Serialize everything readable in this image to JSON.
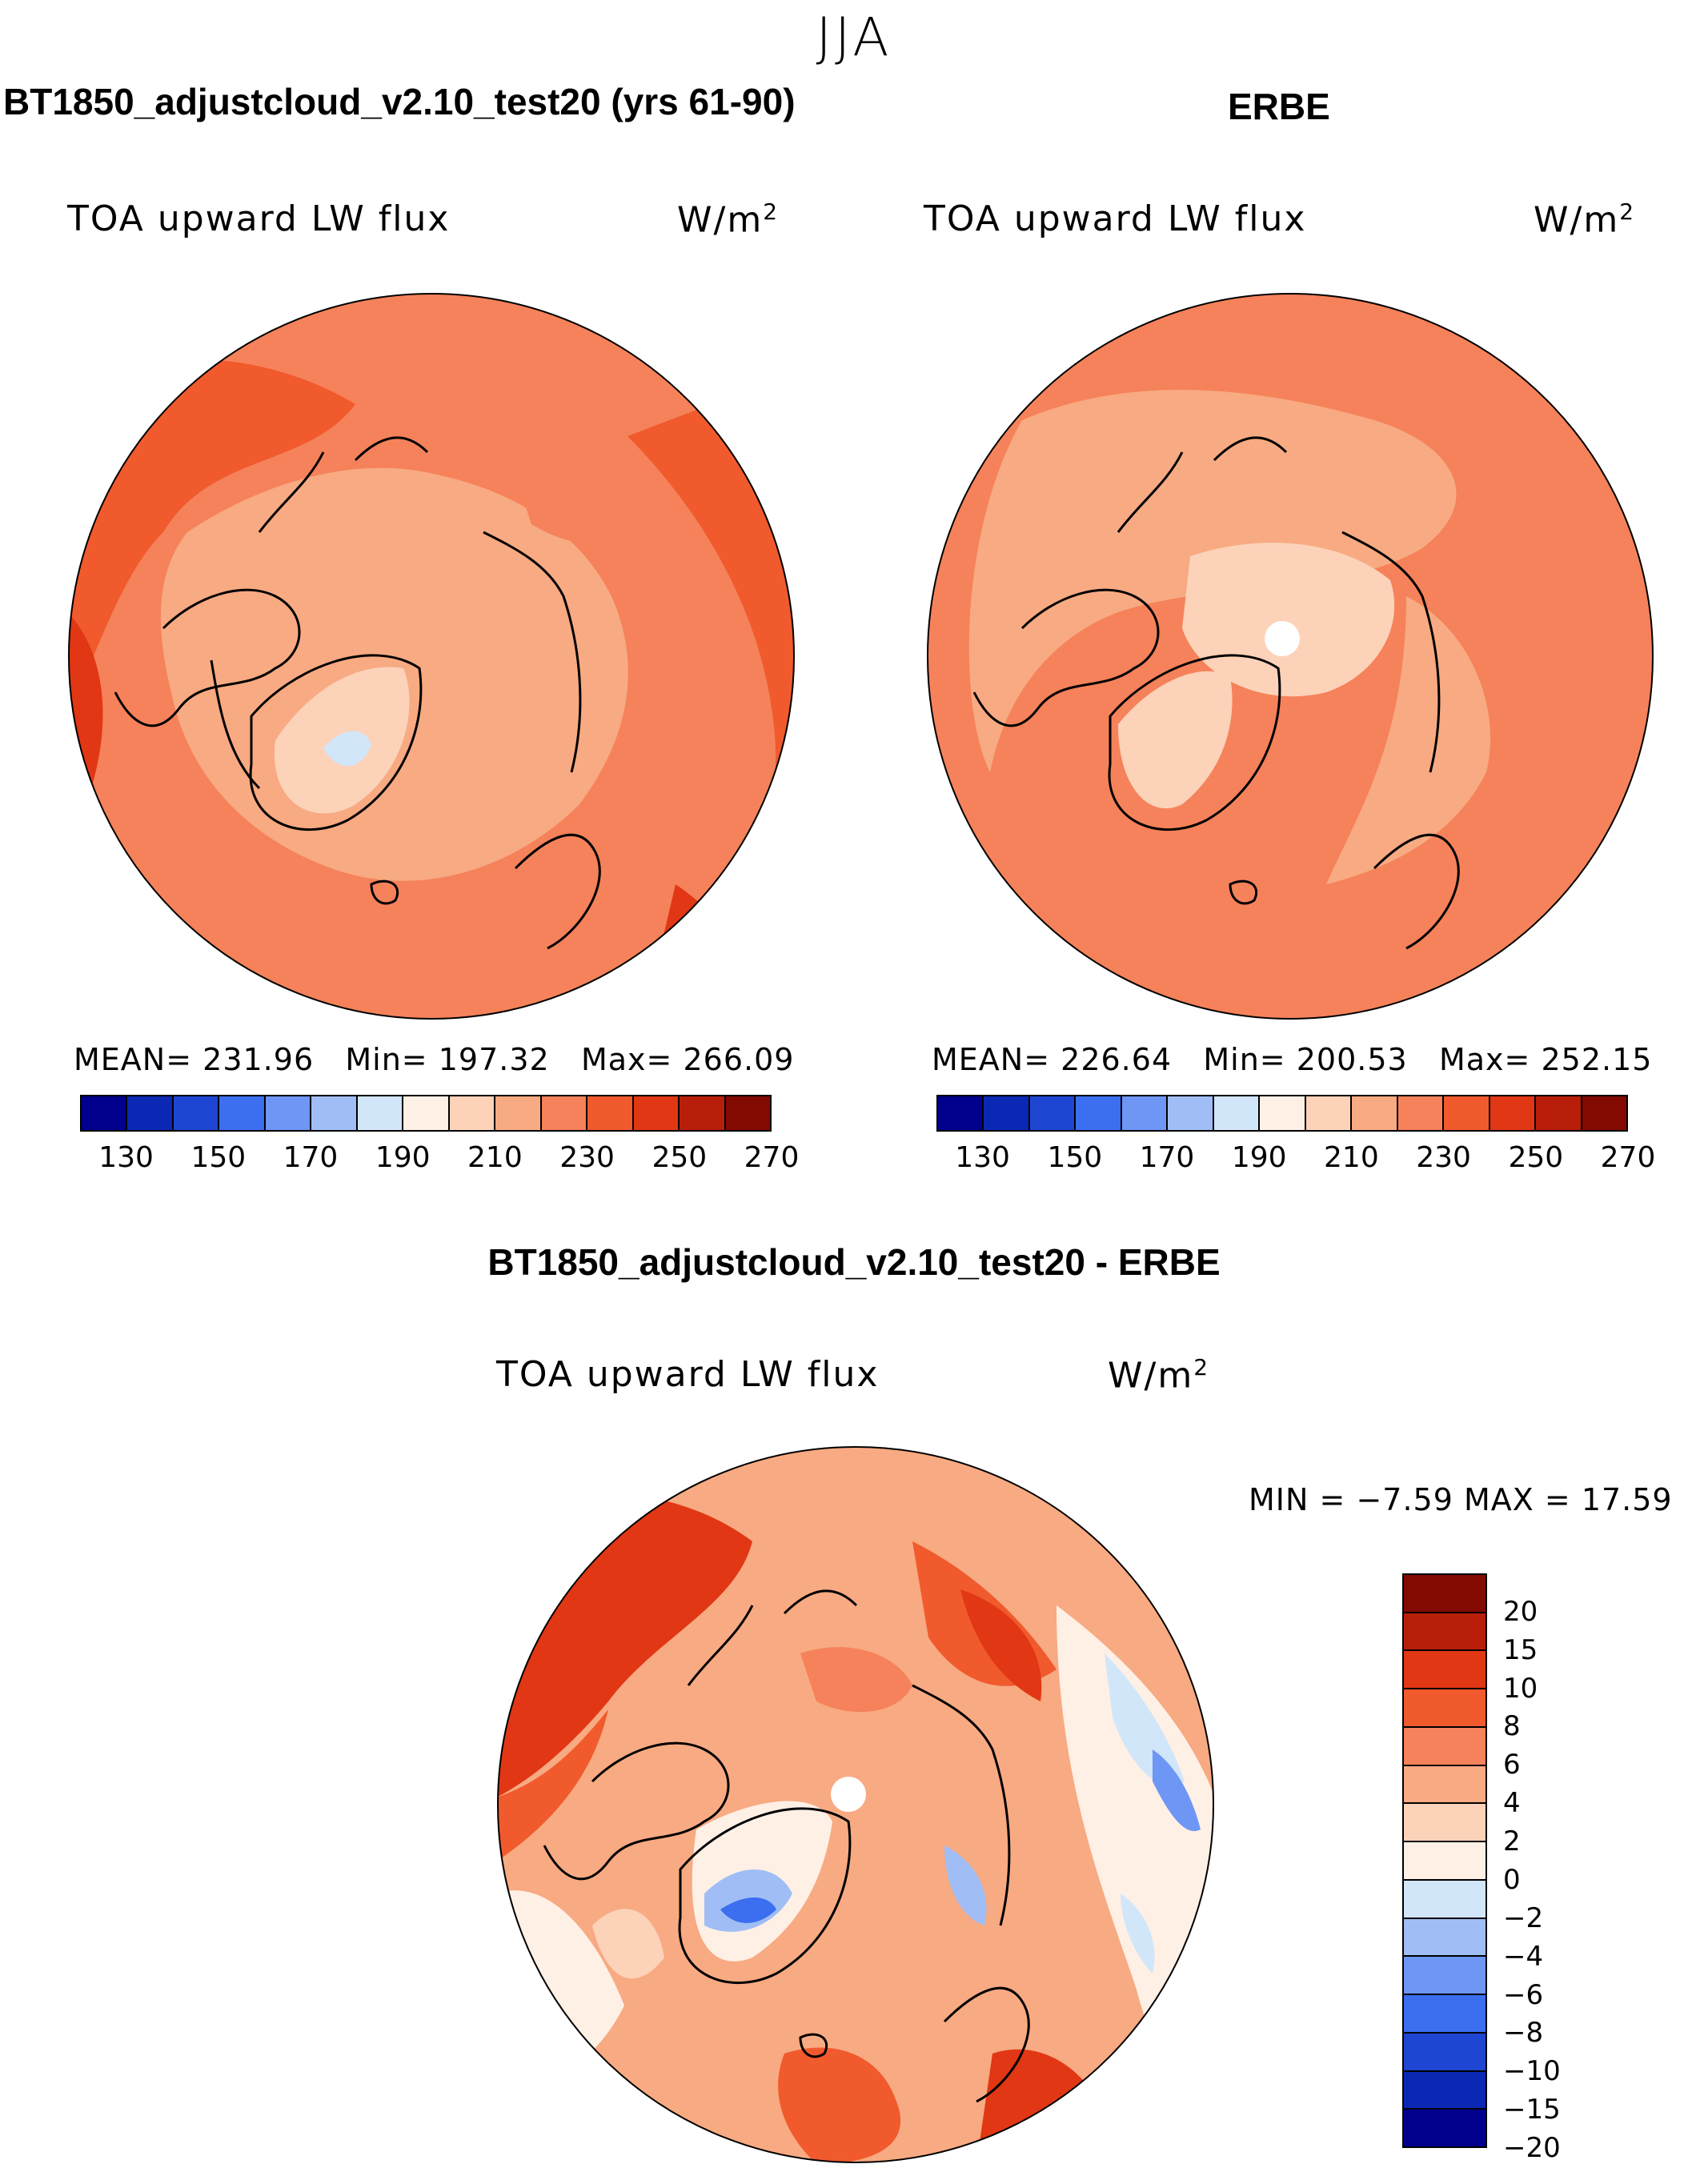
{
  "season": "JJA",
  "panels": {
    "model": {
      "title": "BT1850_adjustcloud_v2.10_test20 (yrs 61-90)",
      "variable": "TOA upward LW flux",
      "units": "W/m",
      "units_exp": "2",
      "mean_label": "MEAN=",
      "mean": "231.96",
      "min_label": "Min=",
      "min": "197.32",
      "max_label": "Max=",
      "max": "266.09"
    },
    "obs": {
      "title": "ERBE",
      "variable": "TOA upward LW flux",
      "units": "W/m",
      "units_exp": "2",
      "mean_label": "MEAN=",
      "mean": "226.64",
      "min_label": "Min=",
      "min": "200.53",
      "max_label": "Max=",
      "max": "252.15"
    },
    "diff": {
      "title": "BT1850_adjustcloud_v2.10_test20 - ERBE",
      "variable": "TOA upward LW flux",
      "units": "W/m",
      "units_exp": "2",
      "min_label": "MIN =",
      "min": "−7.59",
      "max_label": "MAX =",
      "max": "17.59"
    }
  },
  "colorbar_abs": {
    "colors": [
      "#00008c",
      "#0a28b4",
      "#1e46d2",
      "#3c6ef0",
      "#6e96f5",
      "#a0bef5",
      "#d2e6fa",
      "#fff0e6",
      "#fcd2b9",
      "#f8aa82",
      "#f5825a",
      "#f05a2d",
      "#e13714",
      "#b91e0a",
      "#820a00"
    ],
    "tick_labels": [
      "130",
      "150",
      "170",
      "190",
      "210",
      "230",
      "250",
      "270"
    ]
  },
  "colorbar_diff": {
    "colors": [
      "#820a00",
      "#b91e0a",
      "#e13714",
      "#f05a2d",
      "#f5825a",
      "#f8aa82",
      "#fcd2b9",
      "#fff0e6",
      "#d2e6fa",
      "#a0bef5",
      "#6e96f5",
      "#3c6ef0",
      "#1e46d2",
      "#0a28b4",
      "#00008c"
    ],
    "tick_labels": [
      "20",
      "15",
      "10",
      "8",
      "6",
      "4",
      "2",
      "0",
      "−2",
      "−4",
      "−6",
      "−8",
      "−10",
      "−15",
      "−20"
    ]
  },
  "map_colors": {
    "base_model": "#f5825a",
    "base_obs": "#f5825a",
    "base_diff": "#f8aa82"
  }
}
